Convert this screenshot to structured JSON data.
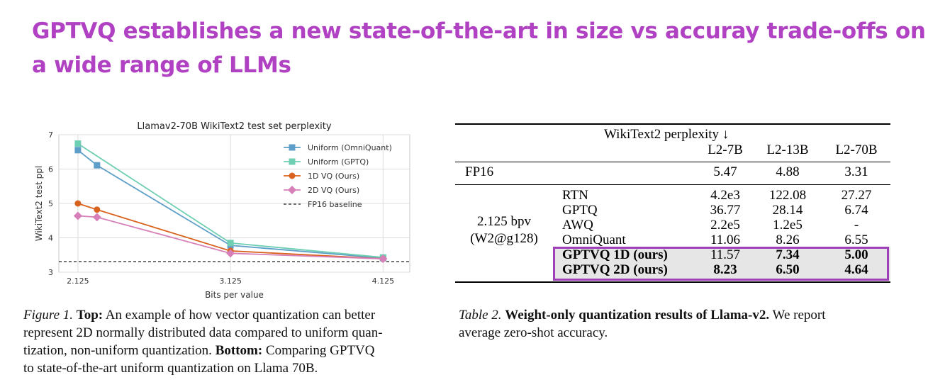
{
  "slide": {
    "title_lines": [
      "GPTVQ establishes a new state-of-the-art in size vs accuray trade-offs on",
      "a wide range of LLMs"
    ],
    "title_color": "#b041c2"
  },
  "chart_data": {
    "type": "line",
    "title": "Llamav2-70B WikiText2 test set perplexity",
    "xlabel": "Bits per value",
    "ylabel": "WikiText2 test ppl",
    "xlim": [
      2.0,
      4.3
    ],
    "ylim": [
      3.0,
      7.0
    ],
    "xticks": [
      2.125,
      3.125,
      4.125
    ],
    "xtick_labels": [
      "2.125",
      "3.125",
      "4.125"
    ],
    "yticks": [
      3,
      4,
      5,
      6,
      7
    ],
    "ytick_labels": [
      "3",
      "4",
      "5",
      "6",
      "7"
    ],
    "grid": true,
    "legend_position": "top-right",
    "series": [
      {
        "name": "Uniform (OmniQuant)",
        "color": "#5d9fc9",
        "marker": "square",
        "x": [
          2.125,
          2.25,
          3.125,
          4.125
        ],
        "y": [
          6.55,
          6.11,
          3.78,
          3.41
        ]
      },
      {
        "name": "Uniform (GPTQ)",
        "color": "#6fcfb3",
        "marker": "square",
        "x": [
          2.125,
          3.125,
          4.125
        ],
        "y": [
          6.74,
          3.85,
          3.43
        ]
      },
      {
        "name": "1D VQ (Ours)",
        "color": "#d9621e",
        "marker": "circle",
        "x": [
          2.125,
          2.25,
          3.125,
          4.125
        ],
        "y": [
          5.0,
          4.82,
          3.62,
          3.39
        ]
      },
      {
        "name": "2D VQ (Ours)",
        "color": "#d67fb8",
        "marker": "diamond",
        "x": [
          2.125,
          2.25,
          3.125,
          4.125
        ],
        "y": [
          4.64,
          4.6,
          3.55,
          3.39
        ]
      }
    ],
    "baseline": {
      "name": "FP16 baseline",
      "y": 3.31,
      "style": "dashed",
      "color": "#222222"
    }
  },
  "figure_caption": {
    "line1": {
      "lead": "Figure 1.",
      "bold": "Top:",
      "text": "An example of how vector quantization can better"
    },
    "line2": "represent 2D normally distributed data compared to uniform quan-",
    "line3": {
      "text": "tization, non-uniform quantization.",
      "bold": "Bottom:",
      "rest": "Comparing GPTVQ"
    },
    "line4": "to state-of-the-art uniform quantization on Llama 70B."
  },
  "results_table": {
    "group_header": "WikiText2 perplexity ↓",
    "columns": [
      "L2-7B",
      "L2-13B",
      "L2-70B"
    ],
    "fp16": {
      "label": "FP16",
      "values": [
        "5.47",
        "4.88",
        "3.31"
      ]
    },
    "setting_line1": "2.125 bpv",
    "setting_line2": "(W2@g128)",
    "rows": [
      {
        "method": "RTN",
        "values": [
          "4.2e3",
          "122.08",
          "27.27"
        ]
      },
      {
        "method": "GPTQ",
        "values": [
          "36.77",
          "28.14",
          "6.74"
        ]
      },
      {
        "method": "AWQ",
        "values": [
          "2.2e5",
          "1.2e5",
          "-"
        ]
      },
      {
        "method": "OmniQuant",
        "values": [
          "11.06",
          "8.26",
          "6.55"
        ]
      },
      {
        "method": "GPTVQ 1D (ours)",
        "values": [
          "11.57",
          "7.34",
          "5.00"
        ]
      },
      {
        "method": "GPTVQ 2D (ours)",
        "values": [
          "8.23",
          "6.50",
          "4.64"
        ]
      }
    ],
    "highlight_color": "#a040b8"
  },
  "table_caption": {
    "lead": "Table 2.",
    "bold": "Weight-only quantization results of Llama-v2.",
    "text": "We report",
    "line2": "average zero-shot accuracy."
  }
}
